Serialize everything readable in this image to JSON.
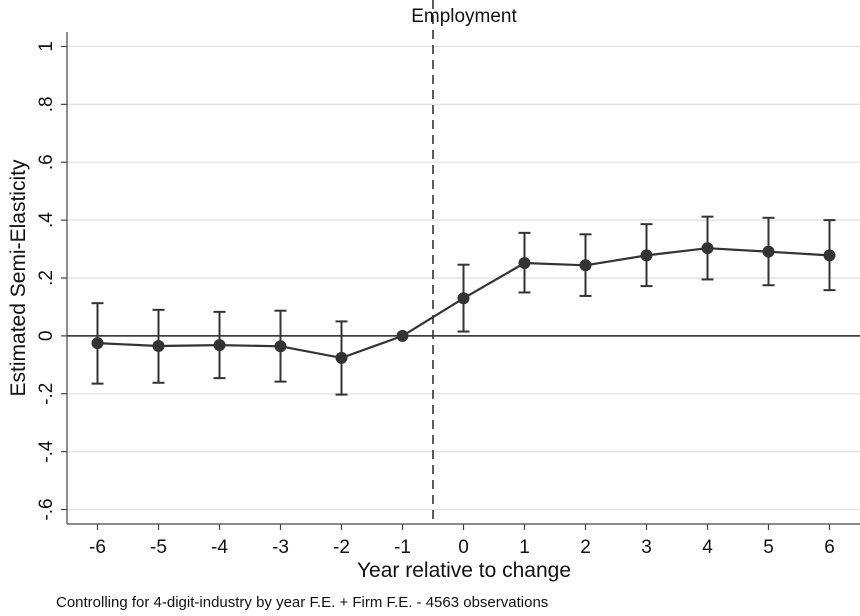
{
  "chart_data": {
    "type": "line",
    "title": "Employment",
    "xlabel": "Year relative to change",
    "ylabel": "Estimated Semi-Elasticity",
    "note": "Controlling for 4-digit-industry by year F.E. + Firm  F.E. - 4563 observations",
    "x": [
      -6,
      -5,
      -4,
      -3,
      -2,
      -1,
      0,
      1,
      2,
      3,
      4,
      5,
      6
    ],
    "series": [
      {
        "values": [
          -0.025,
          -0.035,
          -0.032,
          -0.036,
          -0.076,
          0.0,
          0.13,
          0.252,
          0.244,
          0.278,
          0.303,
          0.291,
          0.278
        ],
        "ci_low": [
          -0.165,
          -0.162,
          -0.146,
          -0.158,
          -0.203,
          0.0,
          0.015,
          0.15,
          0.138,
          0.172,
          0.195,
          0.175,
          0.158
        ],
        "ci_high": [
          0.113,
          0.09,
          0.083,
          0.087,
          0.05,
          0.0,
          0.246,
          0.356,
          0.351,
          0.386,
          0.412,
          0.408,
          0.4
        ]
      }
    ],
    "xlim": [
      -6.5,
      6.5
    ],
    "ylim": [
      -0.65,
      1.05
    ],
    "x_ticks": [
      {
        "value": -6,
        "label": "-6"
      },
      {
        "value": -5,
        "label": "-5"
      },
      {
        "value": -4,
        "label": "-4"
      },
      {
        "value": -3,
        "label": "-3"
      },
      {
        "value": -2,
        "label": "-2"
      },
      {
        "value": -1,
        "label": "-1"
      },
      {
        "value": 0,
        "label": "0"
      },
      {
        "value": 1,
        "label": "1"
      },
      {
        "value": 2,
        "label": "2"
      },
      {
        "value": 3,
        "label": "3"
      },
      {
        "value": 4,
        "label": "4"
      },
      {
        "value": 5,
        "label": "5"
      },
      {
        "value": 6,
        "label": "6"
      }
    ],
    "y_ticks": [
      {
        "value": 1,
        "label": "1"
      },
      {
        "value": 0.8,
        "label": ".8"
      },
      {
        "value": 0.6,
        "label": ".6"
      },
      {
        "value": 0.4,
        "label": ".4"
      },
      {
        "value": 0.2,
        "label": ".2"
      },
      {
        "value": 0,
        "label": "0"
      },
      {
        "value": -0.2,
        "label": "-.2"
      },
      {
        "value": -0.4,
        "label": "-.4"
      },
      {
        "value": -0.6,
        "label": "-.6"
      }
    ],
    "reference_lines": {
      "horizontal_y": 0,
      "vertical_dashed_x": -0.5
    },
    "grid": "horizontal",
    "colors": {
      "line": "#333333",
      "grid": "#e4e4e4",
      "axis": "#444444"
    }
  }
}
